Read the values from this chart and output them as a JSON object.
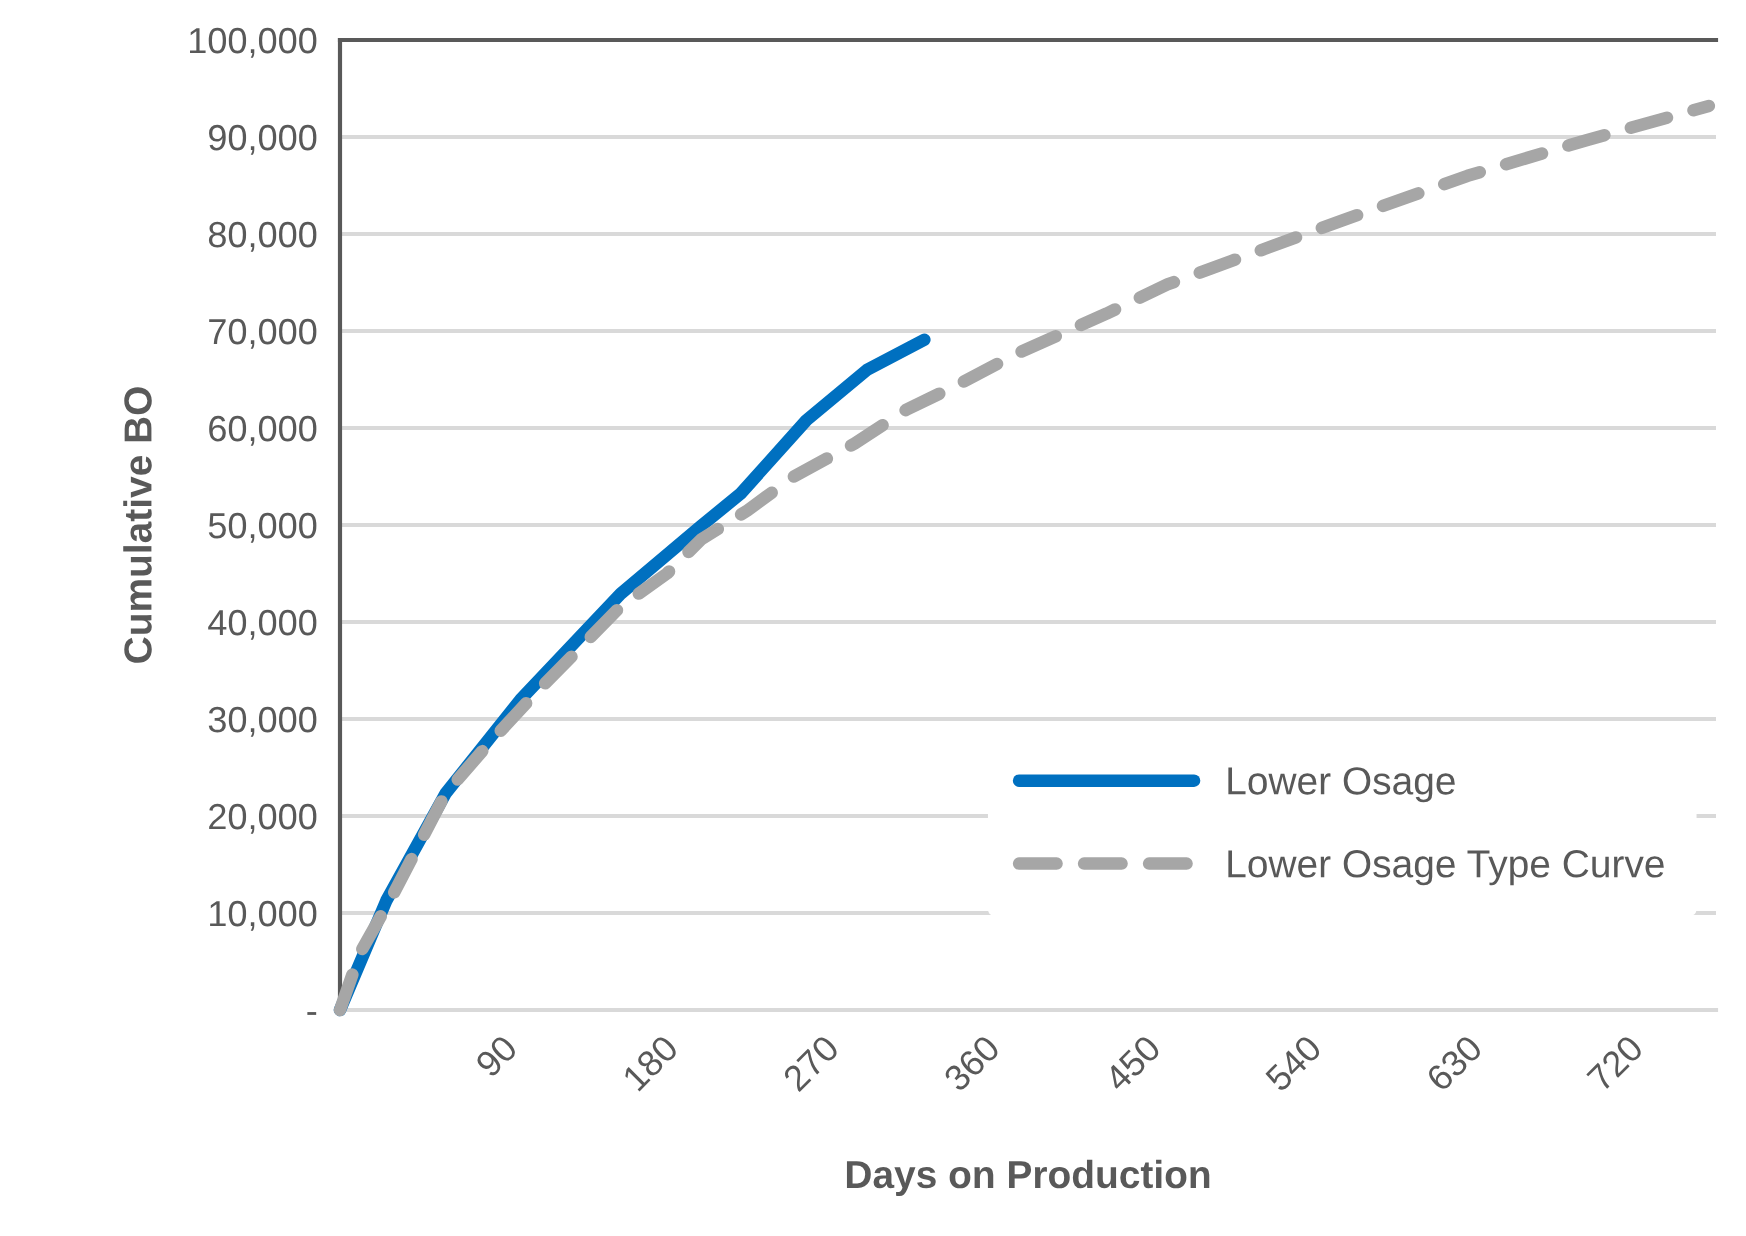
{
  "chart_data": {
    "type": "line",
    "xlabel": "Days on Production",
    "ylabel": "Cumulative BO",
    "xlim": [
      0,
      770
    ],
    "xticks": [
      90,
      180,
      270,
      360,
      450,
      540,
      630,
      720
    ],
    "ylim": [
      0,
      100000
    ],
    "yticks": [
      {
        "value": 0,
        "label": "-"
      },
      {
        "value": 10000,
        "label": "10,000"
      },
      {
        "value": 20000,
        "label": "20,000"
      },
      {
        "value": 30000,
        "label": "30,000"
      },
      {
        "value": 40000,
        "label": "40,000"
      },
      {
        "value": 50000,
        "label": "50,000"
      },
      {
        "value": 60000,
        "label": "60,000"
      },
      {
        "value": 70000,
        "label": "70,000"
      },
      {
        "value": 80000,
        "label": "80,000"
      },
      {
        "value": 90000,
        "label": "90,000"
      },
      {
        "value": 100000,
        "label": "100,000"
      }
    ],
    "grid": "y",
    "legend": "right",
    "series": [
      {
        "name": "Lower Osage",
        "color": "#0070c0",
        "line_style": "solid",
        "x": [
          0,
          26,
          59,
          101,
          157,
          202,
          224,
          261,
          295,
          327
        ],
        "values": [
          0,
          11300,
          22300,
          32000,
          42900,
          49900,
          53200,
          60800,
          66000,
          69100
        ]
      },
      {
        "name": "Lower Osage Type Curve",
        "color": "#a6a6a6",
        "line_style": "dashed",
        "x": [
          0,
          11,
          30,
          59,
          82,
          109,
          131,
          157,
          183,
          202,
          228,
          254,
          288,
          317,
          344,
          378,
          429,
          463,
          561,
          631,
          698,
          766
        ],
        "values": [
          0,
          5800,
          12000,
          22300,
          27200,
          32600,
          36700,
          41600,
          45000,
          48500,
          51500,
          55000,
          58400,
          61900,
          64300,
          67600,
          71800,
          74800,
          81400,
          86000,
          89700,
          93200
        ]
      }
    ]
  }
}
